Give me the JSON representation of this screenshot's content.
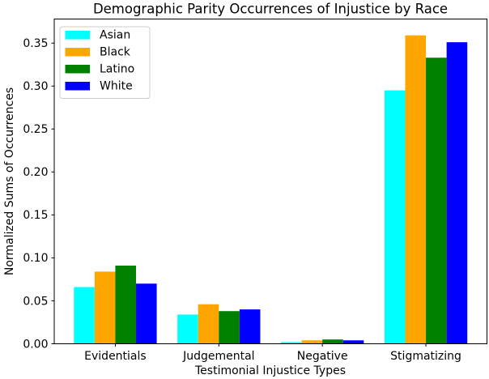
{
  "figure": {
    "background": "#ffffff",
    "axis_color": "#000000"
  },
  "chart_data": {
    "type": "bar",
    "title": "Demographic Parity Occurrences of Injustice by Race",
    "xlabel": "Testimonial Injustice Types",
    "ylabel": "Normalized Sums of Occurrences",
    "categories": [
      "Evidentials",
      "Judgemental",
      "Negative",
      "Stigmatizing"
    ],
    "series": [
      {
        "name": "Asian",
        "color": "#00FFFF",
        "values": [
          0.066,
          0.034,
          0.002,
          0.295
        ]
      },
      {
        "name": "Black",
        "color": "#FFA500",
        "values": [
          0.084,
          0.046,
          0.004,
          0.359
        ]
      },
      {
        "name": "Latino",
        "color": "#008000",
        "values": [
          0.091,
          0.038,
          0.005,
          0.333
        ]
      },
      {
        "name": "White",
        "color": "#0000FF",
        "values": [
          0.07,
          0.04,
          0.004,
          0.351
        ]
      }
    ],
    "bar_width": 0.2,
    "ylim": [
      0,
      0.378
    ],
    "xlim": [
      -0.59,
      3.59
    ],
    "yticks": [
      0.0,
      0.05,
      0.1,
      0.15,
      0.2,
      0.25,
      0.3,
      0.35
    ],
    "grid": false,
    "legend": {
      "position": "upper-left",
      "border_color": "#cccccc",
      "background": "#ffffff"
    }
  }
}
